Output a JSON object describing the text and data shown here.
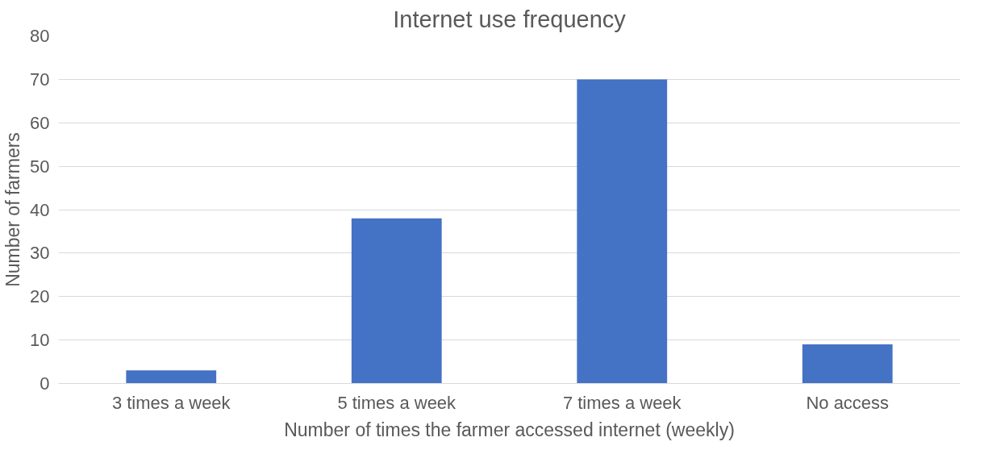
{
  "chart_data": {
    "type": "bar",
    "title": "Internet use frequency",
    "xlabel": "Number of times the farmer accessed internet (weekly)",
    "ylabel": "Number of farmers",
    "categories": [
      "3 times a week",
      "5 times a week",
      "7 times a week",
      "No access"
    ],
    "values": [
      3,
      38,
      70,
      9
    ],
    "color": "#4472c4",
    "ylim": [
      0,
      80
    ],
    "yticks": [
      0,
      10,
      20,
      30,
      40,
      50,
      60,
      70,
      80
    ],
    "grid": "y"
  }
}
